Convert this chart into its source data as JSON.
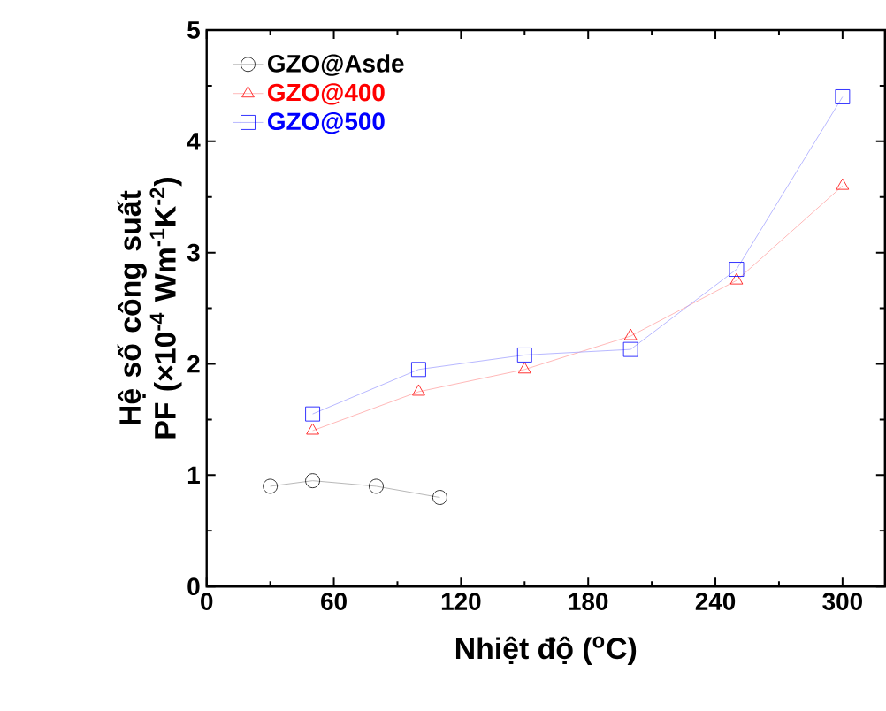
{
  "chart_data": {
    "type": "line",
    "xlabel": "Nhiệt độ ($^{o}$C)",
    "ylabel": "Hệ số công suất PF (×10$^{-4}$ Wm$^{-1}$K$^{-2}$)",
    "xlim": [
      0,
      320
    ],
    "xticks": [
      0,
      60,
      120,
      180,
      240,
      300
    ],
    "ylim": [
      0,
      5
    ],
    "yticks": [
      0,
      1,
      2,
      3,
      4,
      5
    ],
    "legend": "top left",
    "grid": false,
    "series": [
      {
        "name": "GZO@Asde",
        "color": "#000000",
        "marker": "circle",
        "x": [
          30,
          50,
          80,
          110
        ],
        "values": [
          0.9,
          0.95,
          0.9,
          0.8
        ]
      },
      {
        "name": "GZO@400",
        "color": "#ff0000",
        "marker": "triangle",
        "x": [
          50,
          100,
          150,
          200,
          250,
          300
        ],
        "values": [
          1.4,
          1.75,
          1.95,
          2.25,
          2.75,
          3.6
        ]
      },
      {
        "name": "GZO@500",
        "color": "#0000ff",
        "marker": "square",
        "x": [
          50,
          100,
          150,
          200,
          250,
          300
        ],
        "values": [
          1.55,
          1.95,
          2.08,
          2.13,
          2.85,
          4.4
        ]
      }
    ]
  }
}
